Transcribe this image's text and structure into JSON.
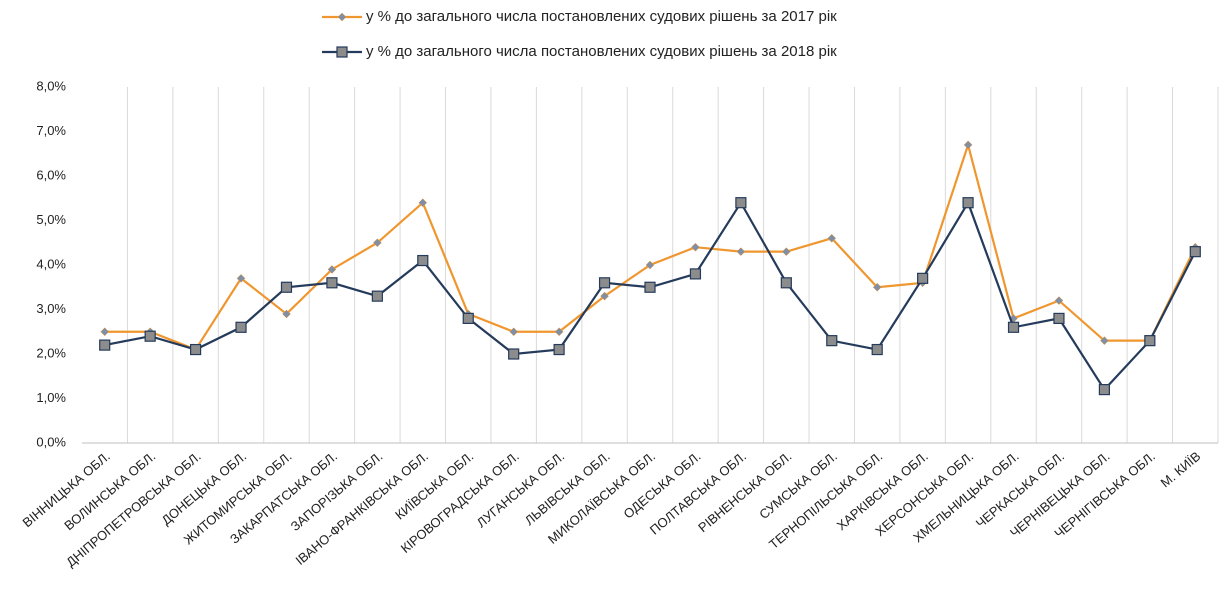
{
  "chart_data": {
    "type": "line",
    "categories": [
      "ВІННИЦЬКА ОБЛ.",
      "ВОЛИНСЬКА ОБЛ.",
      "ДНІПРОПЕТРОВСЬКА ОБЛ.",
      "ДОНЕЦЬКА ОБЛ.",
      "ЖИТОМИРСЬКА ОБЛ.",
      "ЗАКАРПАТСЬКА ОБЛ.",
      "ЗАПОРІЗЬКА ОБЛ.",
      "ІВАНО-ФРАНКІВСЬКА ОБЛ.",
      "КИЇВСЬКА ОБЛ.",
      "КІРОВОГРАДСЬКА ОБЛ.",
      "ЛУГАНСЬКА ОБЛ.",
      "ЛЬВІВСЬКА ОБЛ.",
      "МИКОЛАЇВСЬКА ОБЛ.",
      "ОДЕСЬКА ОБЛ.",
      "ПОЛТАВСЬКА ОБЛ.",
      "РІВНЕНСЬКА ОБЛ.",
      "СУМСЬКА ОБЛ.",
      "ТЕРНОПІЛЬСЬКА ОБЛ.",
      "ХАРКІВСЬКА ОБЛ.",
      "ХЕРСОНСЬКА ОБЛ.",
      "ХМЕЛЬНИЦЬКА ОБЛ.",
      "ЧЕРКАСЬКА ОБЛ.",
      "ЧЕРНІВЕЦЬКА ОБЛ.",
      "ЧЕРНІГІВСЬКА ОБЛ.",
      "М. КИЇВ"
    ],
    "series": [
      {
        "name": "у % до загального числа постановлених судових рішень за 2017 рік",
        "color": "#f0962e",
        "marker": "diamond",
        "values": [
          2.5,
          2.5,
          2.1,
          3.7,
          2.9,
          3.9,
          4.5,
          5.4,
          2.9,
          2.5,
          2.5,
          3.3,
          4.0,
          4.4,
          4.3,
          4.3,
          4.6,
          3.5,
          3.6,
          6.7,
          2.8,
          3.2,
          2.3,
          2.3,
          4.4
        ]
      },
      {
        "name": "у % до загального числа постановлених судових рішень за 2018 рік",
        "color": "#253b5b",
        "marker": "square",
        "values": [
          2.2,
          2.4,
          2.1,
          2.6,
          3.5,
          3.6,
          3.3,
          4.1,
          2.8,
          2.0,
          2.1,
          3.6,
          3.5,
          3.8,
          5.4,
          3.6,
          2.3,
          2.1,
          3.7,
          5.4,
          2.6,
          2.8,
          1.2,
          2.3,
          4.3
        ]
      }
    ],
    "ylim": [
      0,
      8
    ],
    "yticks": [
      {
        "value": 0,
        "label": "0,0%"
      },
      {
        "value": 1,
        "label": "1,0%"
      },
      {
        "value": 2,
        "label": "2,0%"
      },
      {
        "value": 3,
        "label": "3,0%"
      },
      {
        "value": 4,
        "label": "4,0%"
      },
      {
        "value": 5,
        "label": "5,0%"
      },
      {
        "value": 6,
        "label": "6,0%"
      },
      {
        "value": 7,
        "label": "7,0%"
      },
      {
        "value": 8,
        "label": "8,0%"
      }
    ],
    "legend": "top"
  }
}
